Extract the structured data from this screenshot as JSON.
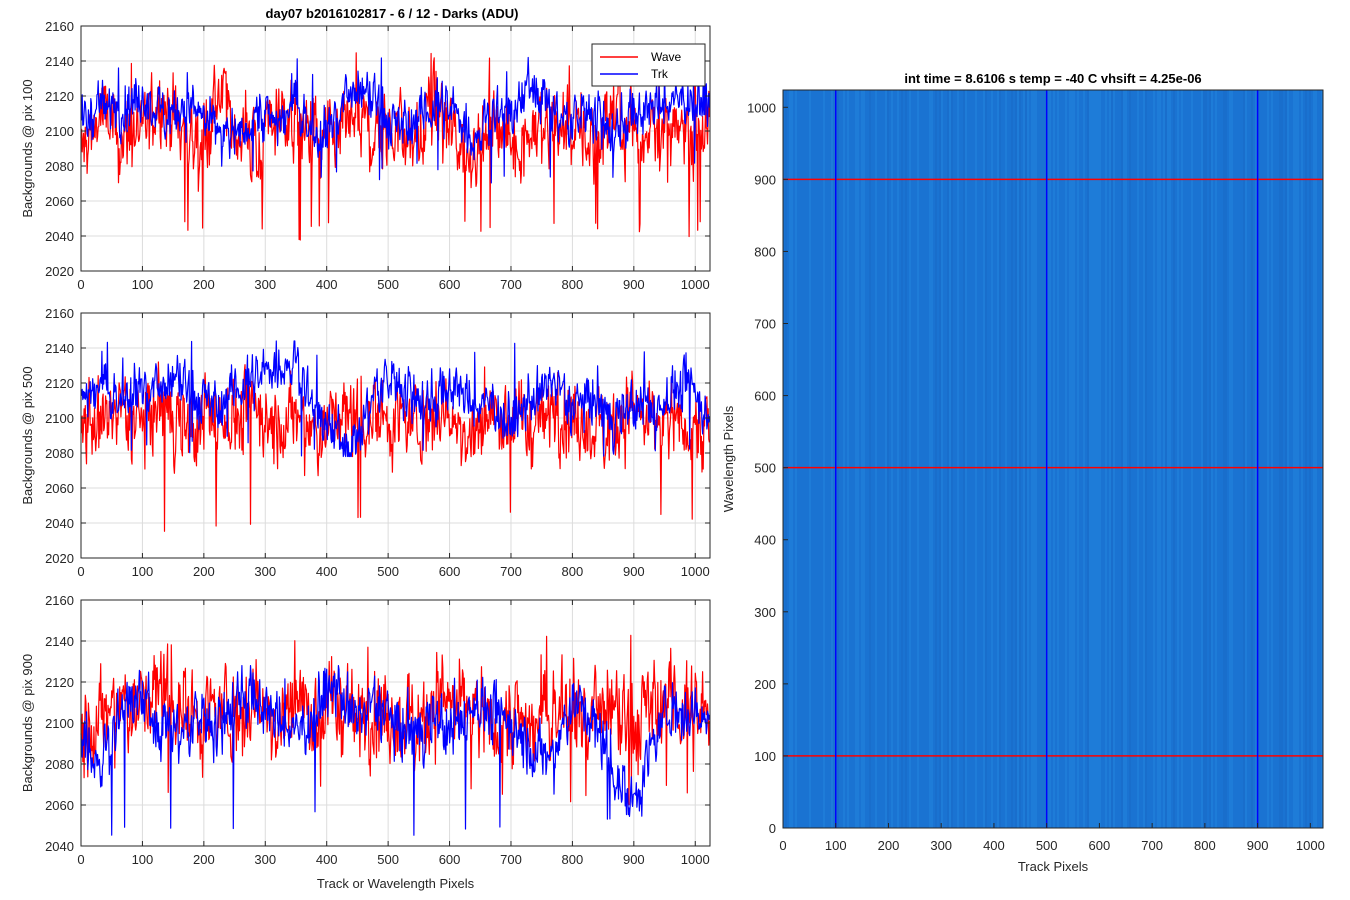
{
  "figure_title": "day07 b2016102817 - 6 / 12 - Darks (ADU)",
  "chart_data": [
    {
      "type": "line",
      "ylabel": "Backgrounds @ pix 100",
      "xlabel": "",
      "xlim": [
        0,
        1024
      ],
      "ylim": [
        2020,
        2160
      ],
      "xticks": [
        0,
        100,
        200,
        300,
        400,
        500,
        600,
        700,
        800,
        900,
        1000
      ],
      "yticks": [
        2020,
        2040,
        2060,
        2080,
        2100,
        2120,
        2140,
        2160
      ],
      "grid": true,
      "legend": "top-right",
      "x_sampled": [
        0,
        32,
        64,
        96,
        128,
        160,
        192,
        224,
        256,
        288,
        320,
        352,
        384,
        416,
        448,
        480,
        512,
        544,
        576,
        608,
        640,
        672,
        704,
        736,
        768,
        800,
        832,
        864,
        896,
        928,
        960,
        992,
        1024
      ],
      "series": [
        {
          "name": "Wave",
          "color": "#ff0000",
          "mean": 2098,
          "min": 2037,
          "max": 2147,
          "values": [
            2085,
            2110,
            2095,
            2100,
            2118,
            2105,
            2092,
            2120,
            2098,
            2088,
            2112,
            2102,
            2095,
            2090,
            2108,
            2097,
            2103,
            2094,
            2110,
            2096,
            2088,
            2102,
            2093,
            2099,
            2105,
            2101,
            2094,
            2108,
            2096,
            2103,
            2092,
            2106,
            2100
          ]
        },
        {
          "name": "Trk",
          "color": "#0000ff",
          "mean": 2108,
          "min": 2070,
          "max": 2142,
          "values": [
            2105,
            2115,
            2112,
            2118,
            2110,
            2115,
            2108,
            2100,
            2098,
            2112,
            2105,
            2115,
            2095,
            2110,
            2120,
            2118,
            2100,
            2105,
            2115,
            2110,
            2095,
            2112,
            2108,
            2130,
            2110,
            2105,
            2112,
            2100,
            2108,
            2112,
            2115,
            2122,
            2110
          ]
        }
      ]
    },
    {
      "type": "line",
      "ylabel": "Backgrounds @ pix 500",
      "xlabel": "",
      "xlim": [
        0,
        1024
      ],
      "ylim": [
        2020,
        2160
      ],
      "xticks": [
        0,
        100,
        200,
        300,
        400,
        500,
        600,
        700,
        800,
        900,
        1000
      ],
      "yticks": [
        2020,
        2040,
        2060,
        2080,
        2100,
        2120,
        2140,
        2160
      ],
      "grid": true,
      "x_sampled": [
        0,
        32,
        64,
        96,
        128,
        160,
        192,
        224,
        256,
        288,
        320,
        352,
        384,
        416,
        448,
        480,
        512,
        544,
        576,
        608,
        640,
        672,
        704,
        736,
        768,
        800,
        832,
        864,
        896,
        928,
        960,
        992,
        1024
      ],
      "series": [
        {
          "name": "Wave",
          "color": "#ff0000",
          "mean": 2098,
          "min": 2035,
          "max": 2132,
          "values": [
            2090,
            2098,
            2105,
            2095,
            2108,
            2100,
            2092,
            2103,
            2098,
            2106,
            2094,
            2100,
            2090,
            2102,
            2097,
            2105,
            2099,
            2094,
            2108,
            2096,
            2090,
            2103,
            2100,
            2095,
            2104,
            2098,
            2092,
            2099,
            2102,
            2095,
            2100,
            2097,
            2094
          ]
        },
        {
          "name": "Trk",
          "color": "#0000ff",
          "mean": 2110,
          "min": 2078,
          "max": 2144,
          "values": [
            2112,
            2118,
            2110,
            2120,
            2112,
            2122,
            2110,
            2105,
            2118,
            2122,
            2130,
            2132,
            2100,
            2090,
            2085,
            2118,
            2120,
            2112,
            2110,
            2118,
            2105,
            2110,
            2095,
            2110,
            2122,
            2105,
            2112,
            2100,
            2108,
            2102,
            2115,
            2118,
            2100
          ]
        }
      ]
    },
    {
      "type": "line",
      "ylabel": "Backgrounds @ pix 900",
      "xlabel": "Track or Wavelength Pixels",
      "xlim": [
        0,
        1024
      ],
      "ylim": [
        2040,
        2160
      ],
      "xticks": [
        0,
        100,
        200,
        300,
        400,
        500,
        600,
        700,
        800,
        900,
        1000
      ],
      "yticks": [
        2040,
        2060,
        2080,
        2100,
        2120,
        2140,
        2160
      ],
      "grid": true,
      "x_sampled": [
        0,
        32,
        64,
        96,
        128,
        160,
        192,
        224,
        256,
        288,
        320,
        352,
        384,
        416,
        448,
        480,
        512,
        544,
        576,
        608,
        640,
        672,
        704,
        736,
        768,
        800,
        832,
        864,
        896,
        928,
        960,
        992,
        1024
      ],
      "series": [
        {
          "name": "Wave",
          "color": "#ff0000",
          "mean": 2104,
          "min": 2058,
          "max": 2143,
          "values": [
            2095,
            2100,
            2110,
            2108,
            2115,
            2112,
            2105,
            2102,
            2108,
            2110,
            2100,
            2112,
            2104,
            2110,
            2102,
            2106,
            2098,
            2102,
            2110,
            2105,
            2108,
            2100,
            2104,
            2098,
            2105,
            2110,
            2100,
            2104,
            2098,
            2106,
            2110,
            2104,
            2100
          ]
        },
        {
          "name": "Trk",
          "color": "#0000ff",
          "mean": 2100,
          "min": 2045,
          "max": 2128,
          "values": [
            2095,
            2080,
            2105,
            2112,
            2100,
            2095,
            2102,
            2098,
            2115,
            2110,
            2100,
            2095,
            2108,
            2115,
            2102,
            2110,
            2098,
            2095,
            2105,
            2092,
            2112,
            2102,
            2100,
            2085,
            2082,
            2112,
            2100,
            2080,
            2062,
            2085,
            2110,
            2105,
            2100
          ]
        }
      ]
    },
    {
      "type": "heatmap",
      "title": "int time = 8.6106 s    temp = -40 C    vhsift = 4.25e-06",
      "xlabel": "Track Pixels",
      "ylabel": "Wavelength Pixels",
      "xlim": [
        0,
        1024
      ],
      "ylim": [
        0,
        1024
      ],
      "xticks": [
        0,
        100,
        200,
        300,
        400,
        500,
        600,
        700,
        800,
        900,
        1000
      ],
      "yticks": [
        0,
        100,
        200,
        300,
        400,
        500,
        600,
        700,
        800,
        900,
        1000
      ],
      "base_color": "#1c78d6",
      "vertical_markers": {
        "x": [
          100,
          500,
          900
        ],
        "color": "#0000ff"
      },
      "horizontal_markers": {
        "y": [
          100,
          500,
          900
        ],
        "color": "#ff0000"
      }
    }
  ]
}
